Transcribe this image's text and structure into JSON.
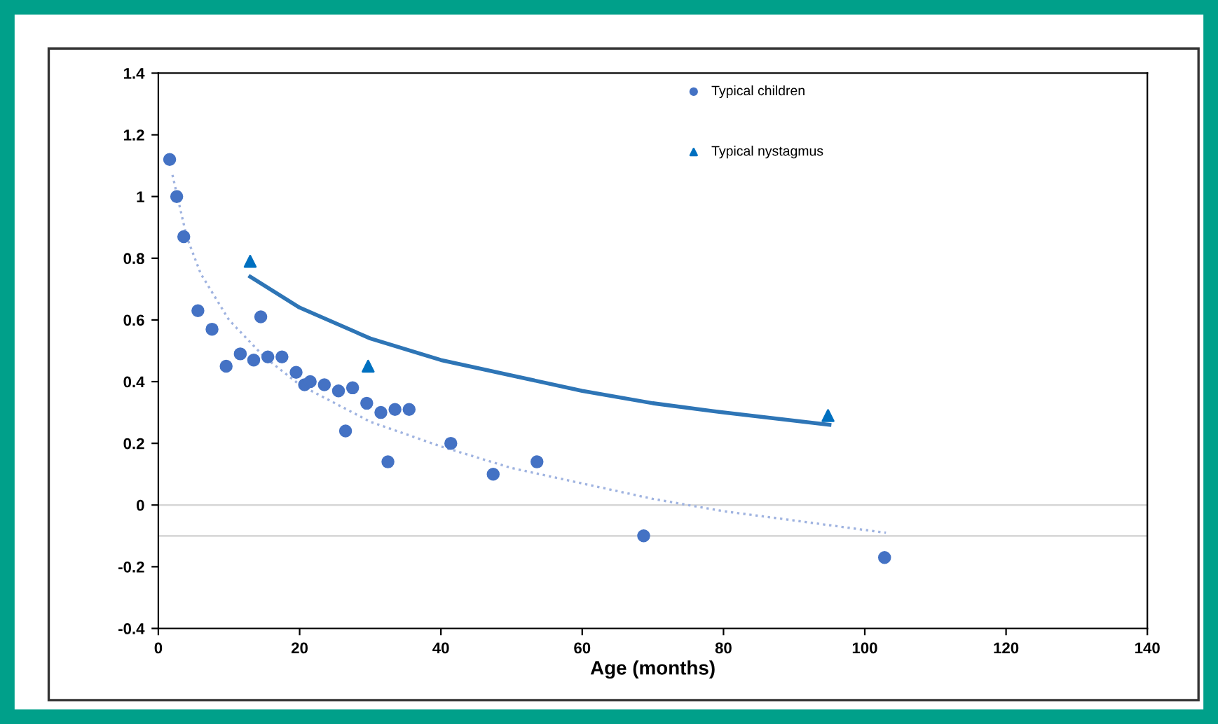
{
  "chart_data": {
    "type": "scatter",
    "xlabel": "Age (months)",
    "xlim": [
      0,
      140
    ],
    "xticks": [
      0,
      20,
      40,
      60,
      80,
      100,
      120,
      140
    ],
    "ylim": [
      -0.4,
      1.4
    ],
    "yticks": [
      -0.4,
      -0.2,
      0,
      0.2,
      0.4,
      0.6,
      0.8,
      1,
      1.2,
      1.4
    ],
    "grid": false,
    "legend": "top",
    "series": [
      {
        "name": "Typical children",
        "marker": "circle",
        "color": "#4472c4",
        "x": [
          1.6,
          2.6,
          3.6,
          5.6,
          7.6,
          9.6,
          11.6,
          13.5,
          14.5,
          15.5,
          17.5,
          19.5,
          20.7,
          21.5,
          23.5,
          25.5,
          26.5,
          27.5,
          29.5,
          31.5,
          32.5,
          33.5,
          35.5,
          41.4,
          47.4,
          53.6,
          68.7,
          102.8
        ],
        "values": [
          1.12,
          1.0,
          0.87,
          0.63,
          0.57,
          0.45,
          0.49,
          0.47,
          0.61,
          0.48,
          0.48,
          0.43,
          0.39,
          0.4,
          0.39,
          0.37,
          0.24,
          0.38,
          0.33,
          0.3,
          0.14,
          0.31,
          0.31,
          0.2,
          0.1,
          0.14,
          -0.1,
          -0.17
        ]
      },
      {
        "name": "Typical nystagmus",
        "marker": "triangle",
        "color": "#0070c0",
        "x": [
          13,
          29.7,
          94.8
        ],
        "values": [
          0.79,
          0.45,
          0.29
        ]
      },
      {
        "type": "line",
        "line_style": "dotted",
        "color": "#9fb3e0",
        "x": [
          2,
          4,
          6,
          10,
          15,
          20,
          30,
          40,
          50,
          60,
          70,
          80,
          90,
          103
        ],
        "values": [
          1.07,
          0.87,
          0.75,
          0.6,
          0.48,
          0.39,
          0.27,
          0.19,
          0.12,
          0.07,
          0.02,
          -0.02,
          -0.05,
          -0.09
        ]
      },
      {
        "type": "line",
        "line_style": "solid",
        "color": "#2e75b6",
        "x": [
          13,
          20,
          30,
          40,
          50,
          60,
          70,
          80,
          95
        ],
        "values": [
          0.74,
          0.64,
          0.54,
          0.47,
          0.42,
          0.37,
          0.33,
          0.3,
          0.26
        ]
      }
    ],
    "ref_lines": [
      {
        "axis": "y",
        "value": 0,
        "color": "#d9d9d9"
      },
      {
        "axis": "y",
        "value": -0.1,
        "color": "#d9d9d9"
      }
    ]
  }
}
